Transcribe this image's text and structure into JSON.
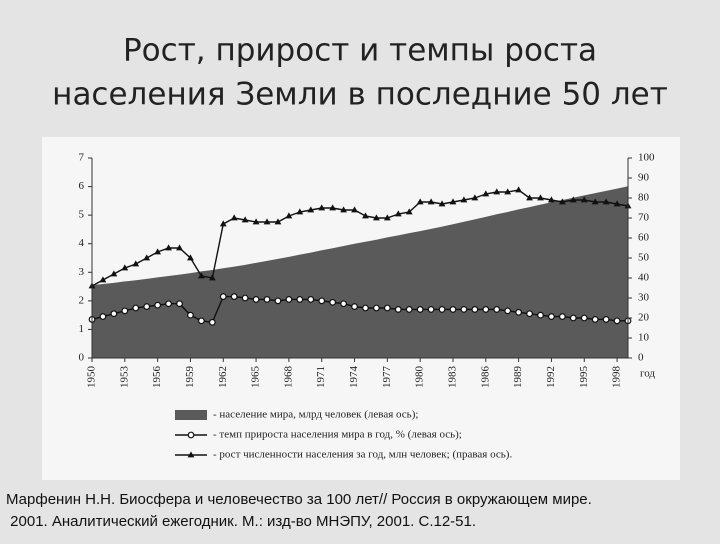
{
  "header": {
    "title": [
      "Рост, прирост и темпы роста",
      "населения Земли в последние 50 лет"
    ]
  },
  "chart_data": {
    "type": "combo",
    "xlabel": "год",
    "x": [
      1950,
      1951,
      1952,
      1953,
      1954,
      1955,
      1956,
      1957,
      1958,
      1959,
      1960,
      1961,
      1962,
      1963,
      1964,
      1965,
      1966,
      1967,
      1968,
      1969,
      1970,
      1971,
      1972,
      1973,
      1974,
      1975,
      1976,
      1977,
      1978,
      1979,
      1980,
      1981,
      1982,
      1983,
      1984,
      1985,
      1986,
      1987,
      1988,
      1989,
      1990,
      1991,
      1992,
      1993,
      1994,
      1995,
      1996,
      1997,
      1998,
      1999
    ],
    "xlim": [
      1950,
      1999
    ],
    "xticks": [
      1950,
      1953,
      1956,
      1959,
      1962,
      1965,
      1968,
      1971,
      1974,
      1977,
      1980,
      1983,
      1986,
      1989,
      1992,
      1995,
      1998
    ],
    "ylim": [
      0,
      7
    ],
    "yticks": [
      0,
      1,
      2,
      3,
      4,
      5,
      6,
      7
    ],
    "y2lim": [
      0,
      100
    ],
    "y2ticks": [
      0,
      10,
      20,
      30,
      40,
      50,
      60,
      70,
      80,
      90,
      100
    ],
    "grid": false,
    "legend": "bottom",
    "series": [
      {
        "name": "- население мира, млрд человек (левая ось);",
        "type": "area",
        "color": "#5a5a5a",
        "values": [
          2.55,
          2.59,
          2.63,
          2.68,
          2.72,
          2.77,
          2.82,
          2.87,
          2.92,
          2.97,
          3.03,
          3.08,
          3.14,
          3.2,
          3.26,
          3.33,
          3.4,
          3.47,
          3.54,
          3.62,
          3.69,
          3.77,
          3.84,
          3.92,
          4.0,
          4.07,
          4.14,
          4.22,
          4.29,
          4.37,
          4.44,
          4.52,
          4.6,
          4.68,
          4.77,
          4.85,
          4.94,
          5.03,
          5.11,
          5.2,
          5.28,
          5.37,
          5.45,
          5.53,
          5.61,
          5.69,
          5.77,
          5.85,
          5.93,
          6.01
        ]
      },
      {
        "name": "- темп прироста населения мира в год, % (левая ось);",
        "type": "line",
        "marker": "circle",
        "color": "#111111",
        "values": [
          1.35,
          1.45,
          1.55,
          1.65,
          1.75,
          1.8,
          1.85,
          1.9,
          1.9,
          1.5,
          1.3,
          1.25,
          2.15,
          2.15,
          2.1,
          2.05,
          2.05,
          2.0,
          2.05,
          2.05,
          2.05,
          2.0,
          1.95,
          1.9,
          1.8,
          1.75,
          1.75,
          1.75,
          1.7,
          1.7,
          1.7,
          1.7,
          1.7,
          1.7,
          1.7,
          1.7,
          1.7,
          1.7,
          1.65,
          1.6,
          1.55,
          1.5,
          1.45,
          1.45,
          1.4,
          1.4,
          1.35,
          1.35,
          1.3,
          1.3
        ]
      },
      {
        "name": "- рост численности населения за год, млн человек; (правая ось).",
        "type": "line",
        "marker": "triangle",
        "axis": "y2",
        "color": "#111111",
        "values": [
          36,
          39,
          42,
          45,
          47,
          50,
          53,
          55,
          55,
          50,
          41,
          40,
          67,
          70,
          69,
          68,
          68,
          68,
          71,
          73,
          74,
          75,
          75,
          74,
          74,
          71,
          70,
          70,
          72,
          73,
          78,
          78,
          77,
          78,
          79,
          80,
          82,
          83,
          83,
          84,
          80,
          80,
          79,
          78,
          79,
          79,
          78,
          78,
          77,
          76
        ]
      }
    ]
  },
  "footer": {
    "citation": [
      "Марфенин Н.Н. Биосфера и человечество за 100 лет// Россия в окружающем мире.",
      " 2001. Аналитический ежегодник. М.: изд-во МНЭПУ, 2001. С.12-51."
    ]
  }
}
